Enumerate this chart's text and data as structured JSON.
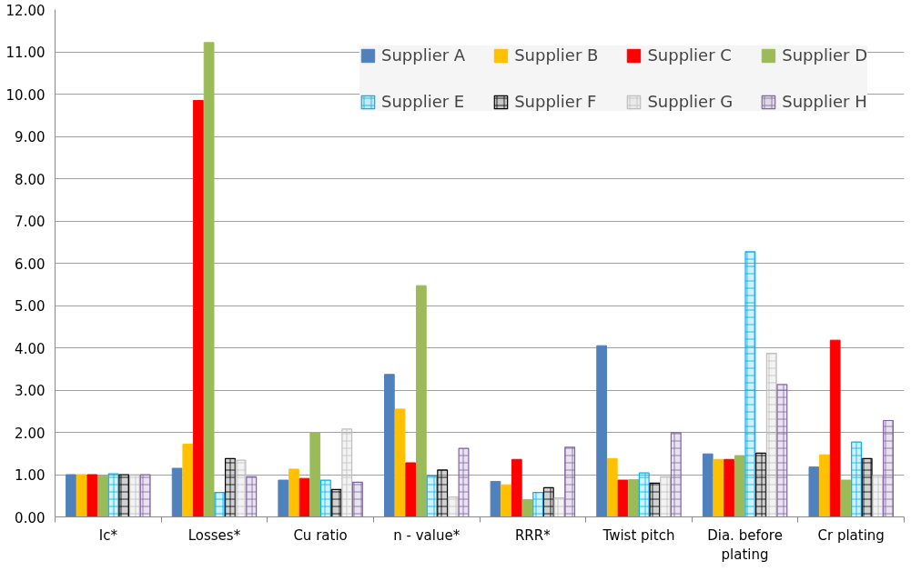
{
  "chart_data": {
    "type": "bar",
    "categories": [
      "Ic*",
      "Losses*",
      "Cu ratio",
      "n - value*",
      "RRR*",
      "Twist pitch",
      "Dia. before plating",
      "Cr plating"
    ],
    "series": [
      {
        "name": "Supplier A",
        "color": "#4f81bd",
        "values": [
          1.0,
          1.15,
          0.87,
          3.37,
          0.84,
          4.05,
          1.49,
          1.18
        ]
      },
      {
        "name": "Supplier B",
        "color": "#ffc000",
        "values": [
          1.0,
          1.72,
          1.13,
          2.55,
          0.76,
          1.38,
          1.36,
          1.47
        ]
      },
      {
        "name": "Supplier C",
        "color": "#ff0000",
        "values": [
          1.0,
          9.85,
          0.91,
          1.28,
          1.36,
          0.87,
          1.36,
          4.18
        ]
      },
      {
        "name": "Supplier D",
        "color": "#9bbb59",
        "values": [
          0.97,
          11.22,
          2.0,
          5.47,
          0.41,
          0.88,
          1.45,
          0.87
        ]
      },
      {
        "name": "Supplier E",
        "color": "#00b0f0",
        "values": [
          1.02,
          0.58,
          0.87,
          0.97,
          0.58,
          1.04,
          6.27,
          1.77
        ]
      },
      {
        "name": "Supplier F",
        "color": "#000000",
        "values": [
          1.0,
          1.38,
          0.65,
          1.11,
          0.69,
          0.8,
          1.51,
          1.38
        ]
      },
      {
        "name": "Supplier G",
        "color": "#bfbfbf",
        "values": [
          1.0,
          1.34,
          2.08,
          0.47,
          0.45,
          0.95,
          3.87,
          0.98
        ]
      },
      {
        "name": "Supplier H",
        "color": "#8064a2",
        "values": [
          1.0,
          0.95,
          0.82,
          1.62,
          1.65,
          1.99,
          3.13,
          2.28
        ]
      }
    ],
    "ylim": [
      0,
      12
    ],
    "yticks": [
      {
        "value": 0,
        "label": "0.00"
      },
      {
        "value": 1,
        "label": "1.00"
      },
      {
        "value": 2,
        "label": "2.00"
      },
      {
        "value": 3,
        "label": "3.00"
      },
      {
        "value": 4,
        "label": "4.00"
      },
      {
        "value": 5,
        "label": "5.00"
      },
      {
        "value": 6,
        "label": "6.00"
      },
      {
        "value": 7,
        "label": "7.00"
      },
      {
        "value": 8,
        "label": "8.00"
      },
      {
        "value": 9,
        "label": "9.00"
      },
      {
        "value": 10,
        "label": "10.00"
      },
      {
        "value": 11,
        "label": "11.00"
      },
      {
        "value": 12,
        "label": "12.00"
      }
    ],
    "grid": "y",
    "legend": "top right"
  }
}
